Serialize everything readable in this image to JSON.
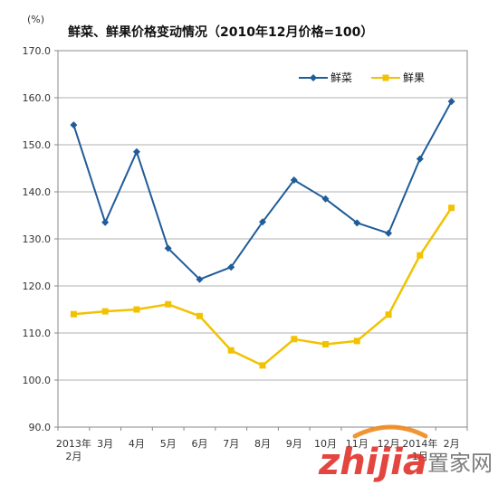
{
  "chart_data": {
    "type": "line",
    "title": "鲜菜、鲜果价格变动情况（2010年12月价格=100）",
    "unit_label": "(%)",
    "categories": [
      [
        "2013年",
        "2月"
      ],
      [
        "3月"
      ],
      [
        "4月"
      ],
      [
        "5月"
      ],
      [
        "6月"
      ],
      [
        "7月"
      ],
      [
        "8月"
      ],
      [
        "9月"
      ],
      [
        "10月"
      ],
      [
        "11月"
      ],
      [
        "12月"
      ],
      [
        "2014年",
        "1月"
      ],
      [
        "2月"
      ]
    ],
    "ylim": [
      90,
      170
    ],
    "yticks": [
      "90.0",
      "100.0",
      "110.0",
      "120.0",
      "130.0",
      "140.0",
      "150.0",
      "160.0",
      "170.0"
    ],
    "grid": true,
    "legend_position": "top-right",
    "series": [
      {
        "name": "鲜菜",
        "color": "#1F5C99",
        "marker": "diamond",
        "values": [
          154.2,
          133.5,
          148.5,
          128.0,
          121.4,
          124.0,
          133.6,
          142.5,
          138.5,
          133.4,
          131.2,
          147.0,
          159.2
        ]
      },
      {
        "name": "鲜果",
        "color": "#F2C200",
        "marker": "square",
        "values": [
          114.0,
          114.6,
          115.0,
          116.1,
          113.6,
          106.3,
          103.1,
          108.7,
          107.6,
          108.3,
          113.9,
          126.5,
          136.6
        ]
      }
    ]
  },
  "watermark": {
    "brand": "zhijia",
    "cn": "置家网"
  }
}
